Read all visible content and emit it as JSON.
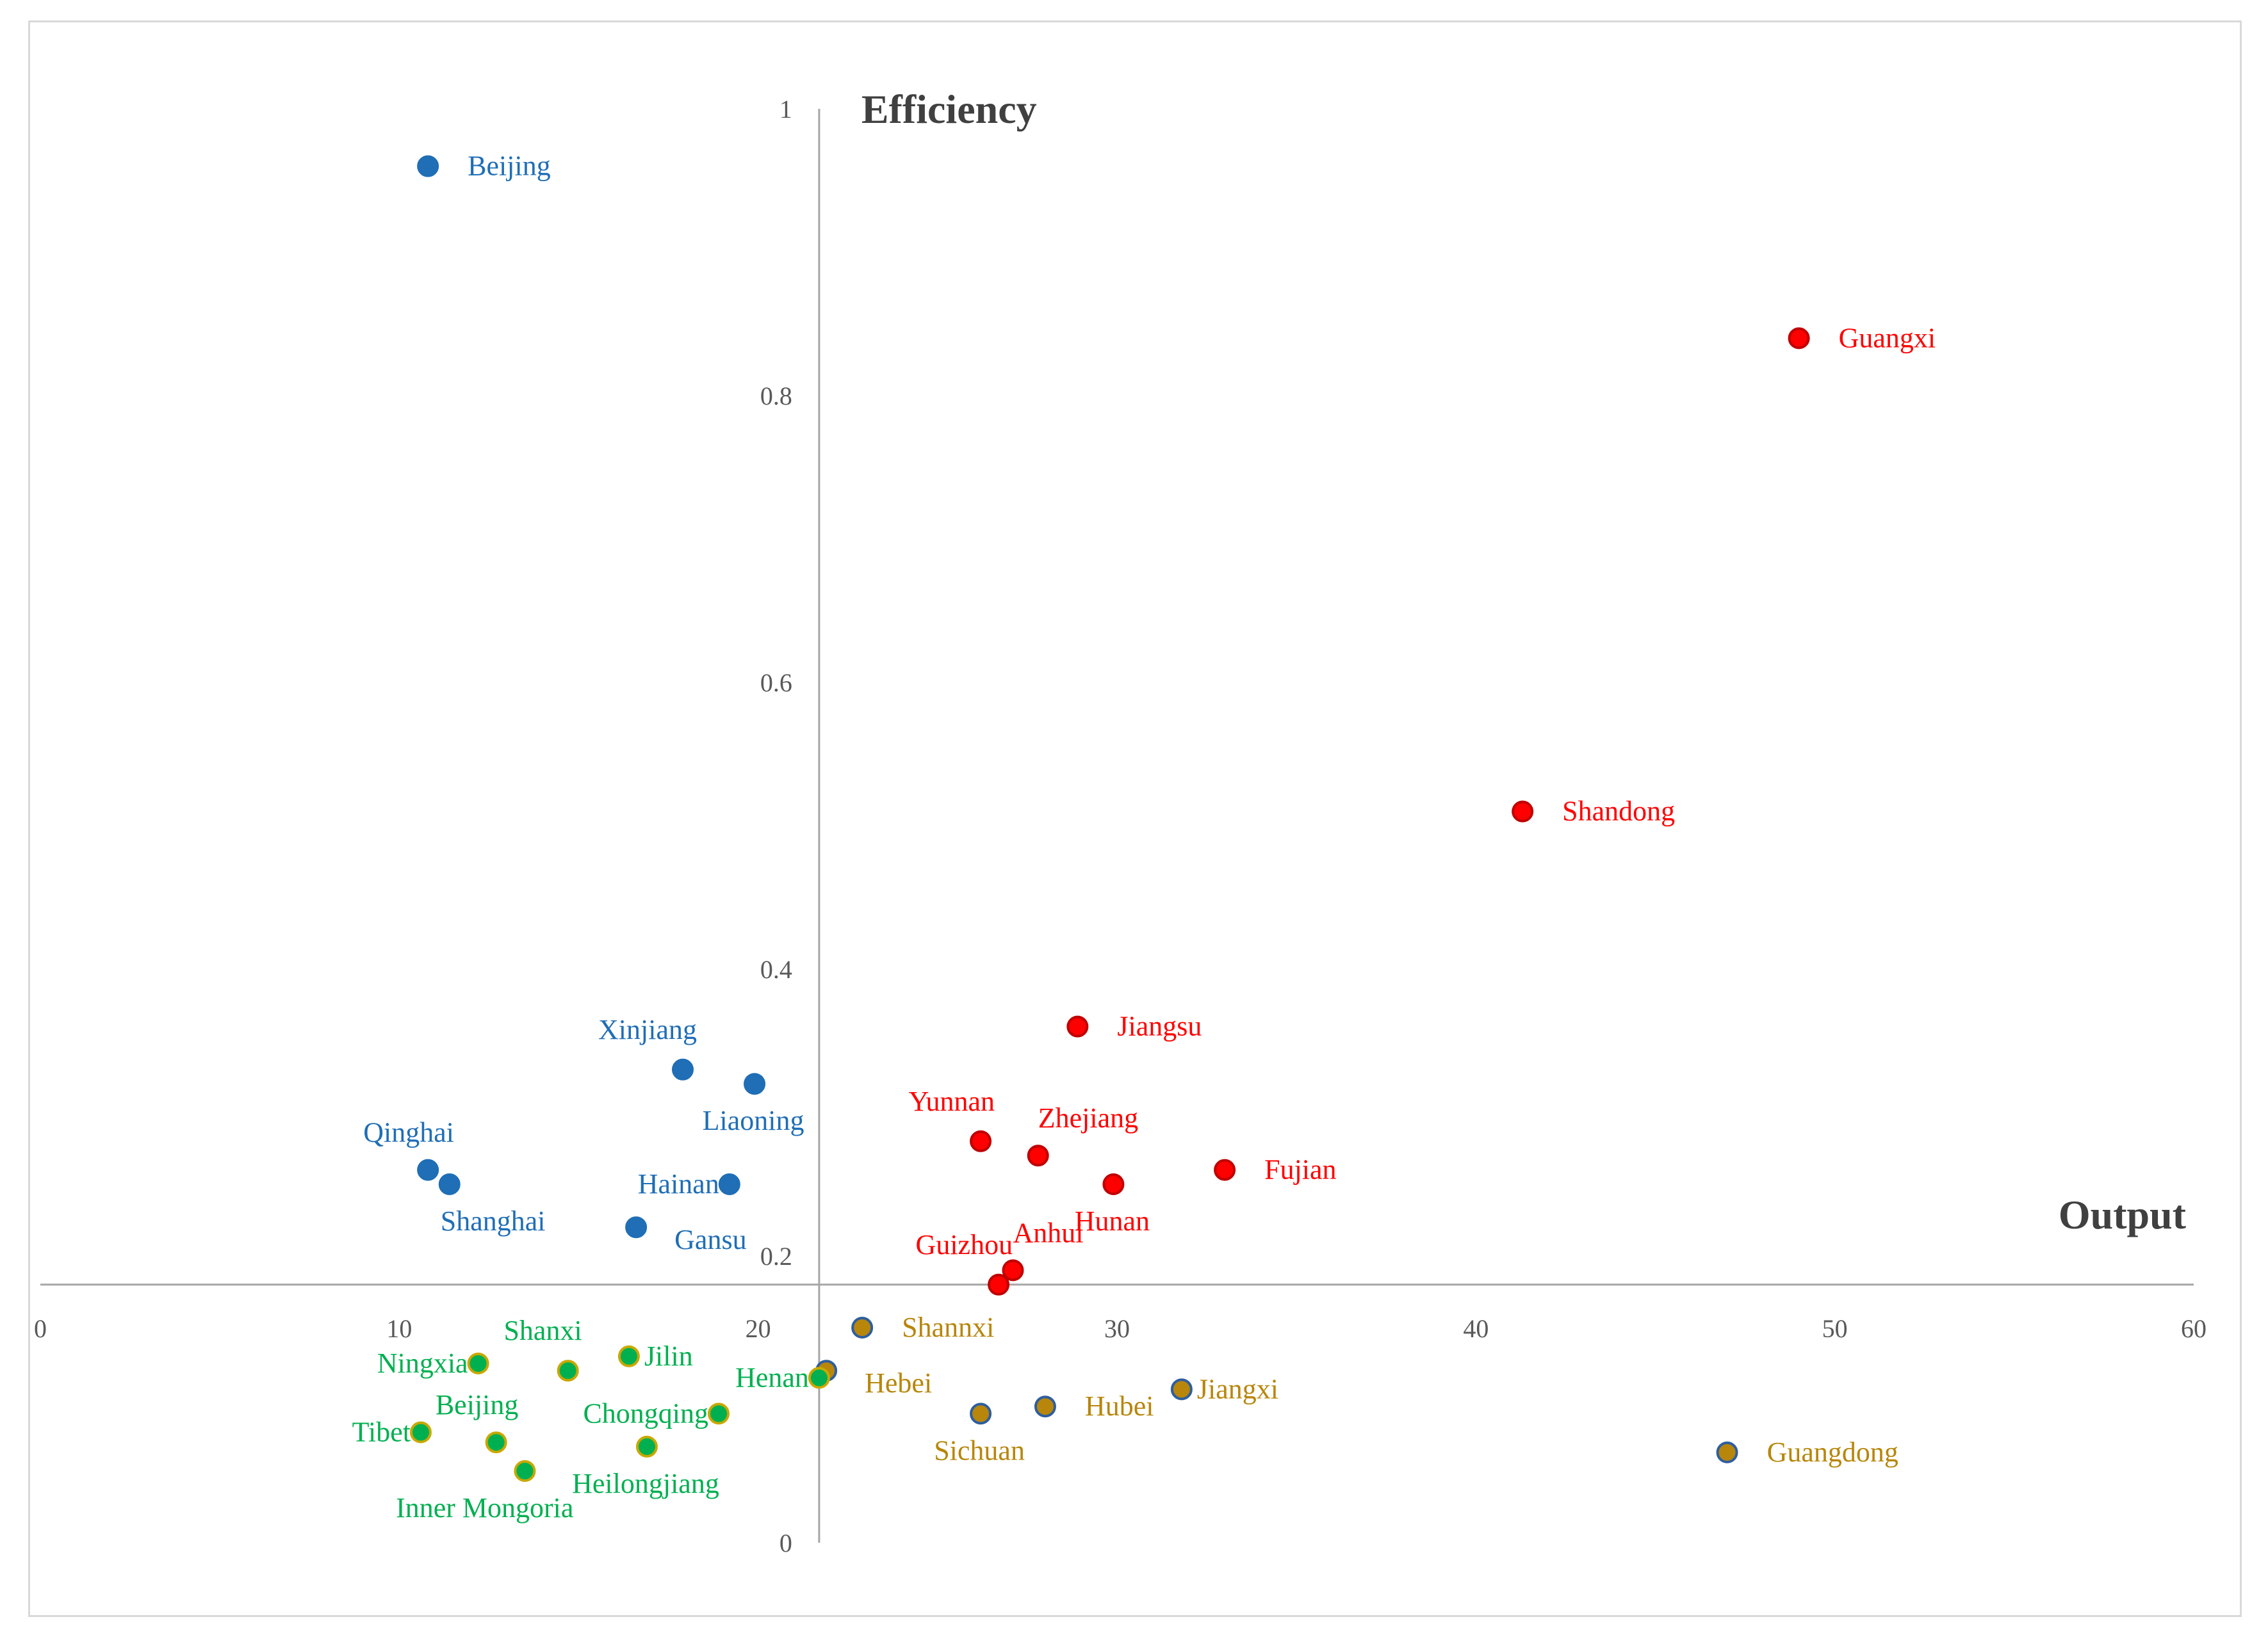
{
  "chart_data": {
    "type": "scatter",
    "title": "",
    "xlabel": "Output",
    "ylabel": "Efficiency",
    "xlim": [
      0,
      60
    ],
    "ylim": [
      0,
      1
    ],
    "x_crosses_y_at": 0.18,
    "y_crosses_x_at": 21.7,
    "x_ticks": [
      {
        "value": 0,
        "label": "0"
      },
      {
        "value": 10,
        "label": "10"
      },
      {
        "value": 20,
        "label": "20"
      },
      {
        "value": 30,
        "label": "30"
      },
      {
        "value": 40,
        "label": "40"
      },
      {
        "value": 50,
        "label": "50"
      },
      {
        "value": 60,
        "label": "60"
      }
    ],
    "y_ticks": [
      {
        "value": 0,
        "label": "0"
      },
      {
        "value": 0.2,
        "label": "0.2"
      },
      {
        "value": 0.4,
        "label": "0.4"
      },
      {
        "value": 0.6,
        "label": "0.6"
      },
      {
        "value": 0.8,
        "label": "0.8"
      },
      {
        "value": 1,
        "label": "1"
      }
    ],
    "grid": false,
    "series": [
      {
        "name": "group-blue",
        "fill": "#1f6eb6",
        "stroke": "#1f6eb6",
        "label_color": "#1f6eb6",
        "points": [
          {
            "label": "Beijing",
            "x": 10.8,
            "y": 0.96,
            "label_pos": "right"
          },
          {
            "label": "Xinjiang",
            "x": 17.9,
            "y": 0.33,
            "label_pos": "above-left"
          },
          {
            "label": "Liaoning",
            "x": 19.9,
            "y": 0.32,
            "label_pos": "below"
          },
          {
            "label": "Qinghai",
            "x": 10.8,
            "y": 0.26,
            "label_pos": "above"
          },
          {
            "label": "Shanghai",
            "x": 11.4,
            "y": 0.25,
            "label_pos": "below-right"
          },
          {
            "label": "Hainan",
            "x": 19.2,
            "y": 0.25,
            "label_pos": "left"
          },
          {
            "label": "Gansu",
            "x": 16.6,
            "y": 0.22,
            "label_pos": "right-low"
          }
        ]
      },
      {
        "name": "group-red",
        "fill": "#ff0000",
        "stroke": "#c00000",
        "label_color": "#ff0000",
        "points": [
          {
            "label": "Guangxi",
            "x": 49.0,
            "y": 0.84,
            "label_pos": "right"
          },
          {
            "label": "Shandong",
            "x": 41.3,
            "y": 0.51,
            "label_pos": "right"
          },
          {
            "label": "Jiangsu",
            "x": 28.9,
            "y": 0.36,
            "label_pos": "right"
          },
          {
            "label": "Yunnan",
            "x": 26.2,
            "y": 0.28,
            "label_pos": "above-left"
          },
          {
            "label": "Zhejiang",
            "x": 27.8,
            "y": 0.27,
            "label_pos": "above-right"
          },
          {
            "label": "Fujian",
            "x": 33.0,
            "y": 0.26,
            "label_pos": "right"
          },
          {
            "label": "Hunan",
            "x": 29.9,
            "y": 0.25,
            "label_pos": "below"
          },
          {
            "label": "Guizhou",
            "x": 26.7,
            "y": 0.18,
            "label_pos": "above-left"
          },
          {
            "label": "Anhui",
            "x": 27.1,
            "y": 0.19,
            "label_pos": "above-right"
          }
        ]
      },
      {
        "name": "group-gold",
        "fill": "#b8860b",
        "stroke": "#2e5e9e",
        "label_color": "#b8860b",
        "points": [
          {
            "label": "Shannxi",
            "x": 22.9,
            "y": 0.15,
            "label_pos": "right"
          },
          {
            "label": "Hebei",
            "x": 21.9,
            "y": 0.12,
            "label_pos": "right-low"
          },
          {
            "label": "Sichuan",
            "x": 26.2,
            "y": 0.09,
            "label_pos": "below"
          },
          {
            "label": "Hubei",
            "x": 28.0,
            "y": 0.095,
            "label_pos": "right"
          },
          {
            "label": "Jiangxi",
            "x": 31.8,
            "y": 0.107,
            "label_pos": "right-tight"
          },
          {
            "label": "Guangdong",
            "x": 47.0,
            "y": 0.063,
            "label_pos": "right"
          }
        ]
      },
      {
        "name": "group-green",
        "fill": "#00b050",
        "stroke": "#c9a800",
        "label_color": "#00b050",
        "points": [
          {
            "label": "Shanxi",
            "x": 14.7,
            "y": 0.12,
            "label_pos": "above-left"
          },
          {
            "label": "Jilin",
            "x": 16.4,
            "y": 0.13,
            "label_pos": "right-tight"
          },
          {
            "label": "Ningxia",
            "x": 12.2,
            "y": 0.125,
            "label_pos": "left"
          },
          {
            "label": "Henan",
            "x": 21.7,
            "y": 0.115,
            "label_pos": "left"
          },
          {
            "label": "Chongqing",
            "x": 18.9,
            "y": 0.09,
            "label_pos": "left"
          },
          {
            "label": "Tibet",
            "x": 10.6,
            "y": 0.077,
            "label_pos": "left"
          },
          {
            "label": "Beijing",
            "x": 12.7,
            "y": 0.07,
            "label_pos": "above"
          },
          {
            "label": "Heilongjiang",
            "x": 16.9,
            "y": 0.067,
            "label_pos": "below"
          },
          {
            "label": "Inner Mongoria",
            "x": 13.5,
            "y": 0.05,
            "label_pos": "below-left"
          }
        ]
      }
    ]
  }
}
